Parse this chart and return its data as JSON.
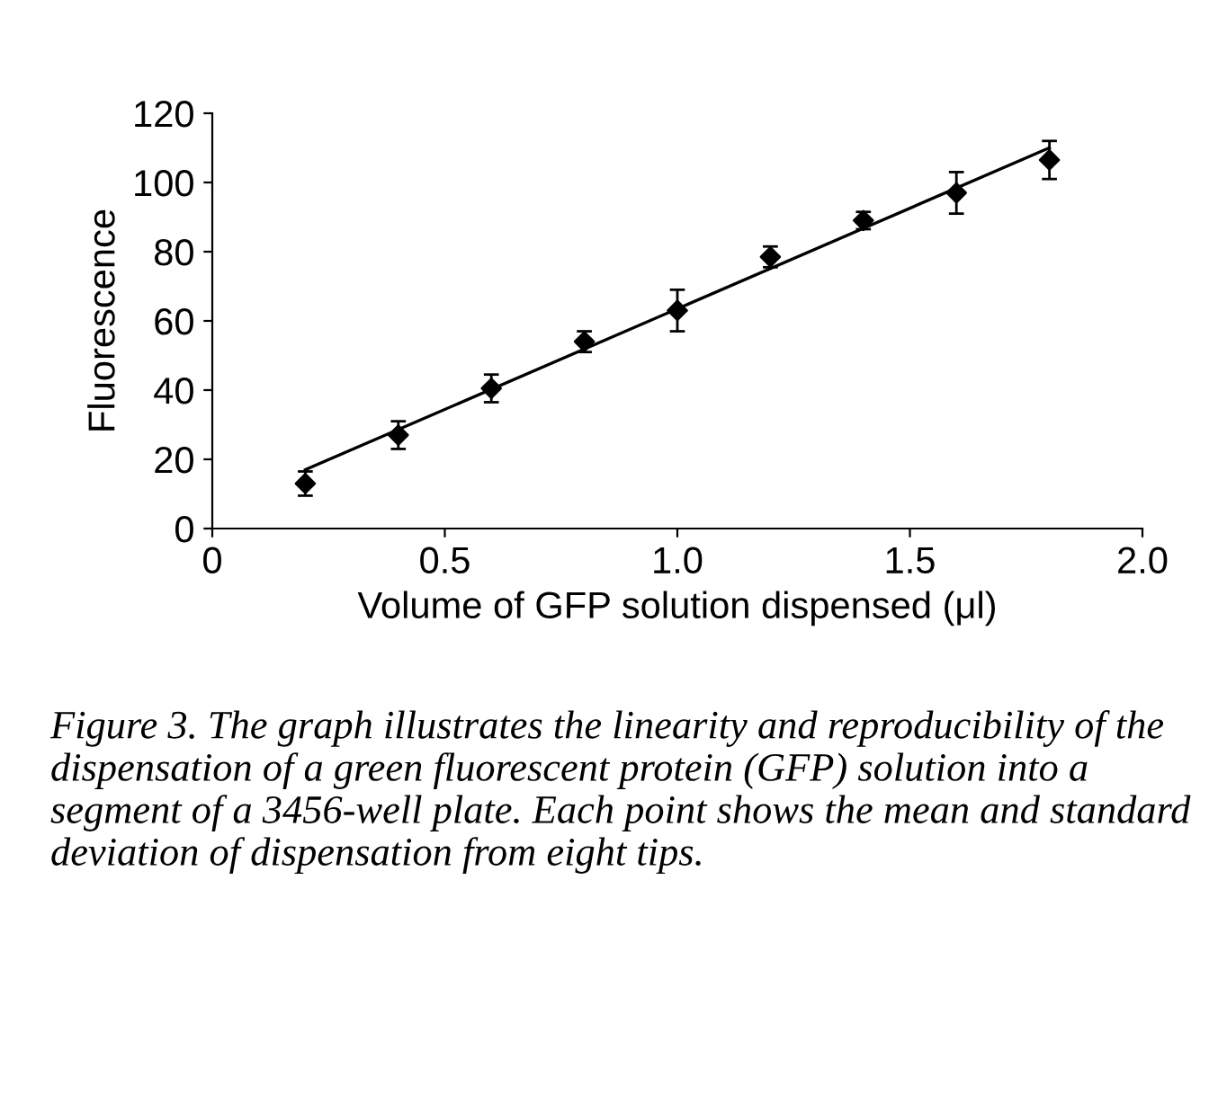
{
  "chart_data": {
    "type": "scatter",
    "xlabel": "Volume of GFP solution dispensed (μl)",
    "ylabel": "Fluorescence",
    "series": [
      {
        "color": "#000000",
        "marker": "diamond",
        "x": [
          0.2,
          0.4,
          0.6,
          0.8,
          1.0,
          1.2,
          1.4,
          1.6,
          1.8
        ],
        "values": [
          13,
          27,
          40.5,
          54,
          63,
          78.5,
          89,
          97,
          106.5
        ],
        "errors": [
          3.5,
          4,
          4,
          3,
          6,
          3,
          2.5,
          6,
          5.5
        ]
      },
      {
        "type": "line",
        "color": "#000000",
        "x": [
          0.2,
          1.8
        ],
        "values": [
          17,
          110
        ]
      }
    ],
    "xlim": [
      0,
      2.0
    ],
    "xticks": [
      0,
      {
        "value": 0.5,
        "label": "0.5"
      },
      {
        "value": 1.0,
        "label": "1.0"
      },
      {
        "value": 1.5,
        "label": "1.5"
      },
      {
        "value": 2.0,
        "label": "2.0"
      }
    ],
    "ylim": [
      0,
      120
    ],
    "yticks": [
      0,
      20,
      40,
      60,
      80,
      100,
      120
    ],
    "grid": false,
    "legend": false,
    "annotations": [
      "Figure 3. The graph illustrates the linearity and reproducibility of the dispensation of a green fluorescent protein (GFP) solution into a segment of a 3456-well plate. Each point shows the mean and standard deviation of dispensation from eight tips."
    ]
  }
}
